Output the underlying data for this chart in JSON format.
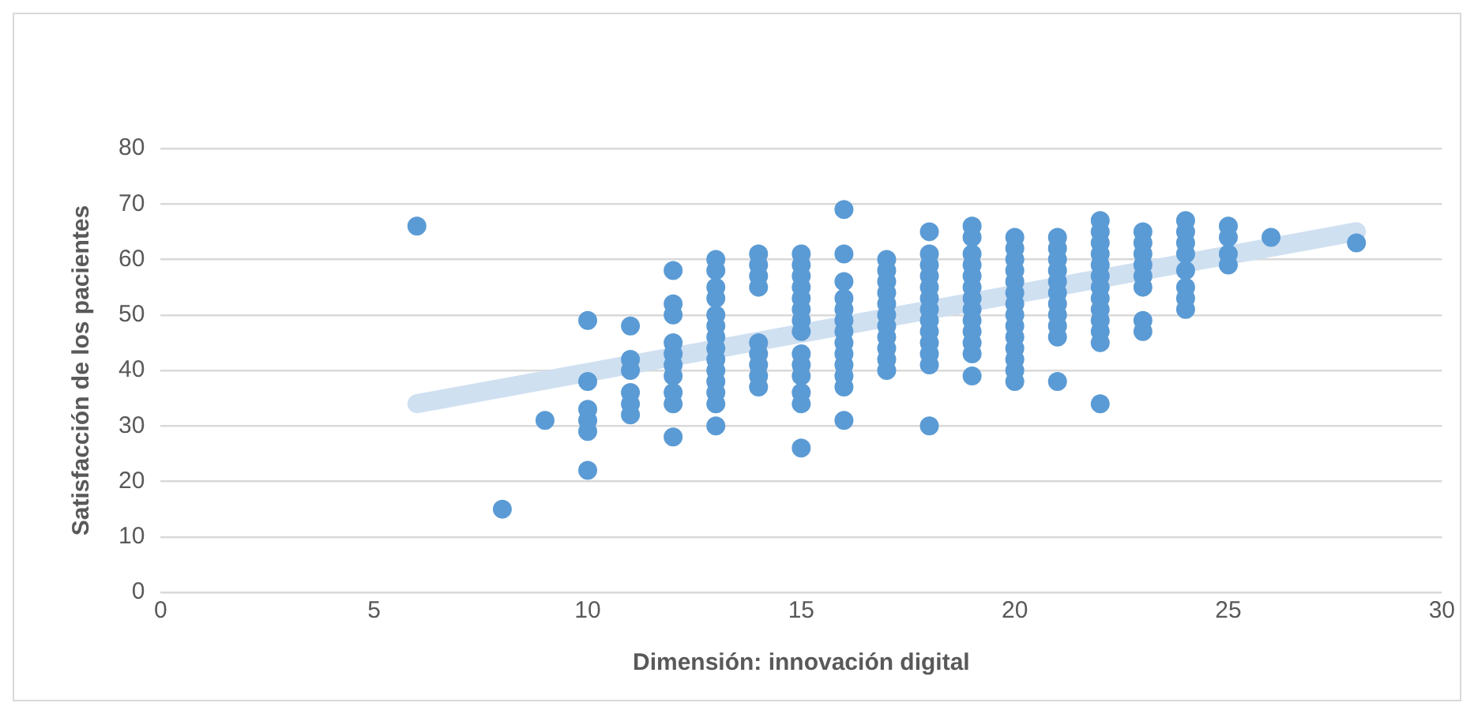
{
  "chart_data": {
    "type": "scatter",
    "xlabel": "Dimensión: innovación digital",
    "ylabel": "Satisfacción de los pacientes",
    "xlim": [
      0,
      30
    ],
    "xticks": [
      0,
      5,
      10,
      15,
      20,
      25,
      30
    ],
    "ylim": [
      0,
      80
    ],
    "yticks": [
      0,
      10,
      20,
      30,
      40,
      50,
      60,
      70,
      80
    ],
    "grid": "y",
    "legend": false,
    "series": [
      {
        "type": "line",
        "marker": "none",
        "color": "#cfe0f1",
        "x": [
          6,
          28
        ],
        "values": [
          34,
          65
        ]
      },
      {
        "marker": "circle",
        "color": "#5b9bd5",
        "x": [
          6,
          8,
          9,
          10,
          10,
          10,
          10,
          10,
          10,
          11,
          11,
          11,
          11,
          11,
          11,
          12,
          12,
          12,
          12,
          12,
          12,
          12,
          12,
          12,
          12,
          13,
          13,
          13,
          13,
          13,
          13,
          13,
          13,
          13,
          13,
          13,
          13,
          13,
          13,
          14,
          14,
          14,
          14,
          14,
          14,
          14,
          14,
          14,
          15,
          15,
          15,
          15,
          15,
          15,
          15,
          15,
          15,
          15,
          15,
          15,
          15,
          15,
          16,
          16,
          16,
          16,
          16,
          16,
          16,
          16,
          16,
          16,
          16,
          16,
          16,
          17,
          17,
          17,
          17,
          17,
          17,
          17,
          17,
          17,
          17,
          17,
          18,
          18,
          18,
          18,
          18,
          18,
          18,
          18,
          18,
          18,
          18,
          18,
          18,
          19,
          19,
          19,
          19,
          19,
          19,
          19,
          19,
          19,
          19,
          19,
          19,
          19,
          20,
          20,
          20,
          20,
          20,
          20,
          20,
          20,
          20,
          20,
          20,
          20,
          20,
          20,
          21,
          21,
          21,
          21,
          21,
          21,
          21,
          21,
          21,
          21,
          21,
          22,
          22,
          22,
          22,
          22,
          22,
          22,
          22,
          22,
          22,
          22,
          22,
          22,
          23,
          23,
          23,
          23,
          23,
          23,
          23,
          23,
          24,
          24,
          24,
          24,
          24,
          24,
          24,
          24,
          25,
          25,
          25,
          25,
          26,
          28
        ],
        "values": [
          66,
          15,
          31,
          49,
          38,
          33,
          31,
          29,
          22,
          48,
          42,
          40,
          36,
          34,
          32,
          58,
          52,
          50,
          45,
          43,
          41,
          39,
          36,
          34,
          28,
          60,
          58,
          55,
          53,
          50,
          48,
          46,
          44,
          42,
          40,
          38,
          36,
          34,
          30,
          61,
          59,
          57,
          55,
          45,
          43,
          41,
          39,
          37,
          61,
          59,
          57,
          55,
          53,
          51,
          49,
          47,
          43,
          41,
          39,
          36,
          34,
          26,
          69,
          61,
          56,
          53,
          51,
          49,
          47,
          45,
          43,
          41,
          39,
          37,
          31,
          60,
          58,
          56,
          54,
          52,
          50,
          48,
          46,
          44,
          42,
          40,
          65,
          61,
          59,
          57,
          55,
          53,
          51,
          49,
          47,
          45,
          43,
          41,
          30,
          66,
          64,
          61,
          59,
          57,
          55,
          53,
          51,
          49,
          47,
          45,
          43,
          39,
          64,
          62,
          60,
          58,
          56,
          54,
          52,
          50,
          48,
          46,
          44,
          42,
          40,
          38,
          64,
          62,
          60,
          58,
          56,
          54,
          52,
          50,
          48,
          46,
          38,
          67,
          65,
          63,
          61,
          59,
          57,
          55,
          53,
          51,
          49,
          47,
          45,
          34,
          65,
          63,
          61,
          59,
          57,
          55,
          49,
          47,
          67,
          65,
          63,
          61,
          58,
          55,
          53,
          51,
          66,
          64,
          61,
          59,
          64,
          63
        ]
      }
    ]
  }
}
